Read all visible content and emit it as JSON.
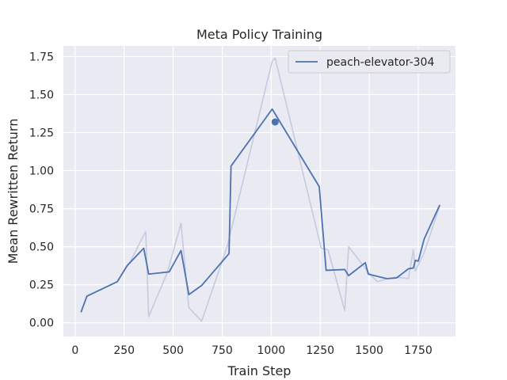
{
  "chart_data": {
    "type": "line",
    "title": "Meta Policy Training",
    "xlabel": "Train Step",
    "ylabel": "Mean Rewritten Return",
    "xlim": [
      -60,
      1940
    ],
    "ylim": [
      -0.09,
      1.82
    ],
    "xticks": [
      0,
      250,
      500,
      750,
      1000,
      1250,
      1500,
      1750
    ],
    "yticks": [
      0.0,
      0.25,
      0.5,
      0.75,
      1.0,
      1.25,
      1.5,
      1.75
    ],
    "xtick_labels": [
      "0",
      "250",
      "500",
      "750",
      "1000",
      "1250",
      "1500",
      "1750"
    ],
    "ytick_labels": [
      "0.00",
      "0.25",
      "0.50",
      "0.75",
      "1.00",
      "1.25",
      "1.50",
      "1.75"
    ],
    "grid": true,
    "legend": {
      "position": "upper right",
      "entries": [
        "peach-elevator-304"
      ]
    },
    "colors": {
      "background": "#eaeaf2",
      "grid": "#ffffff",
      "series": "#4c72b0",
      "raw_series": "#c4cbe0"
    },
    "series": [
      {
        "name": "peach-elevator-304",
        "role": "smoothed",
        "x": [
          30,
          60,
          215,
          265,
          350,
          375,
          480,
          540,
          580,
          645,
          785,
          795,
          1005,
          1245,
          1280,
          1375,
          1395,
          1480,
          1495,
          1590,
          1640,
          1700,
          1725,
          1735,
          1750,
          1780,
          1860
        ],
        "y": [
          0.07,
          0.175,
          0.27,
          0.375,
          0.49,
          0.32,
          0.335,
          0.475,
          0.185,
          0.245,
          0.455,
          1.03,
          1.405,
          0.895,
          0.345,
          0.35,
          0.31,
          0.395,
          0.32,
          0.29,
          0.295,
          0.355,
          0.36,
          0.41,
          0.405,
          0.55,
          0.775
        ]
      },
      {
        "name": "peach-elevator-304 (raw)",
        "role": "raw",
        "x": [
          30,
          60,
          215,
          280,
          360,
          375,
          470,
          540,
          580,
          645,
          775,
          1005,
          1020,
          1255,
          1290,
          1375,
          1395,
          1500,
          1540,
          1590,
          1640,
          1700,
          1725,
          1735,
          1780,
          1860
        ],
        "y": [
          0.07,
          0.175,
          0.27,
          0.4,
          0.6,
          0.04,
          0.33,
          0.655,
          0.1,
          0.01,
          0.5,
          1.72,
          1.74,
          0.49,
          0.48,
          0.08,
          0.5,
          0.325,
          0.27,
          0.29,
          0.3,
          0.29,
          0.48,
          0.34,
          0.46,
          0.77
        ]
      }
    ],
    "marker": {
      "x": 1020,
      "y": 1.32
    }
  }
}
